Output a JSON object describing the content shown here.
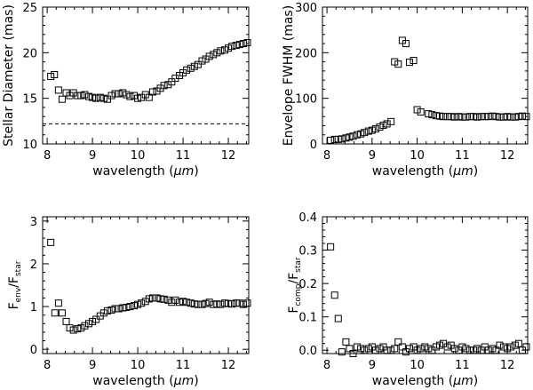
{
  "chart_data": [
    {
      "id": "diameter",
      "type": "scatter",
      "xlabel": "wavelength (",
      "xlabel_unit": "μm",
      "xlabel_end": ")",
      "ylabel": "Stellar Diameter (mas)",
      "xlim": [
        7.9,
        12.45
      ],
      "ylim": [
        10,
        25
      ],
      "xticks": [
        8,
        9,
        10,
        11,
        12
      ],
      "yticks": [
        10,
        15,
        20,
        25
      ],
      "hline": 12.2,
      "x": [
        8.08,
        8.16,
        8.25,
        8.33,
        8.42,
        8.5,
        8.58,
        8.67,
        8.75,
        8.83,
        8.92,
        9.0,
        9.08,
        9.17,
        9.25,
        9.33,
        9.42,
        9.5,
        9.58,
        9.67,
        9.75,
        9.83,
        9.92,
        10.0,
        10.08,
        10.17,
        10.25,
        10.33,
        10.42,
        10.5,
        10.58,
        10.67,
        10.75,
        10.83,
        10.92,
        11.0,
        11.08,
        11.17,
        11.25,
        11.33,
        11.42,
        11.5,
        11.58,
        11.67,
        11.75,
        11.83,
        11.92,
        12.0,
        12.08,
        12.17,
        12.25,
        12.33,
        12.42
      ],
      "y": [
        17.4,
        17.6,
        15.9,
        14.9,
        15.6,
        15.3,
        15.6,
        15.3,
        15.3,
        15.4,
        15.2,
        15.1,
        15.0,
        15.1,
        15.0,
        14.9,
        15.3,
        15.5,
        15.5,
        15.6,
        15.4,
        15.2,
        15.3,
        15.0,
        15.1,
        15.4,
        15.1,
        15.7,
        15.8,
        16.1,
        16.4,
        16.5,
        16.8,
        17.2,
        17.5,
        17.8,
        18.1,
        18.3,
        18.5,
        18.7,
        19.1,
        19.3,
        19.6,
        19.8,
        20.0,
        20.2,
        20.3,
        20.5,
        20.7,
        20.8,
        20.9,
        21.0,
        21.1
      ]
    },
    {
      "id": "fwhm",
      "type": "scatter",
      "xlabel": "wavelength (",
      "xlabel_unit": "μm",
      "xlabel_end": ")",
      "ylabel": "Envelope FWHM (mas)",
      "xlim": [
        7.9,
        12.45
      ],
      "ylim": [
        0,
        300
      ],
      "xticks": [
        8,
        9,
        10,
        11,
        12
      ],
      "yticks": [
        0,
        100,
        200,
        300
      ],
      "x": [
        8.08,
        8.17,
        8.25,
        8.33,
        8.42,
        8.5,
        8.58,
        8.67,
        8.75,
        8.83,
        8.92,
        9.0,
        9.08,
        9.17,
        9.25,
        9.33,
        9.42,
        9.5,
        9.58,
        9.67,
        9.75,
        9.83,
        9.92,
        10.0,
        10.08,
        10.25,
        10.33,
        10.42,
        10.5,
        10.58,
        10.67,
        10.75,
        10.83,
        10.92,
        11.0,
        11.08,
        11.17,
        11.25,
        11.33,
        11.42,
        11.5,
        11.58,
        11.67,
        11.75,
        11.83,
        11.92,
        12.0,
        12.08,
        12.17,
        12.25,
        12.33,
        12.42
      ],
      "y": [
        8,
        10,
        10,
        11,
        13,
        15,
        17,
        20,
        22,
        25,
        28,
        30,
        33,
        37,
        41,
        44,
        49,
        180,
        175,
        227,
        220,
        179,
        183,
        75,
        70,
        66,
        64,
        62,
        61,
        60,
        60,
        60,
        59,
        60,
        59,
        59,
        60,
        60,
        59,
        60,
        60,
        60,
        61,
        60,
        59,
        59,
        60,
        59,
        59,
        60,
        61,
        60
      ],
      "x_fix": true
    },
    {
      "id": "fenv",
      "type": "scatter",
      "xlabel": "wavelength (",
      "xlabel_unit": "μm",
      "xlabel_end": ")",
      "ylabel_main": "F",
      "ylabel_sub1": "env",
      "ylabel_mid": "/F",
      "ylabel_sub2": "star",
      "xlim": [
        7.9,
        12.45
      ],
      "ylim": [
        -0.1,
        3.1
      ],
      "xticks": [
        8,
        9,
        10,
        11,
        12
      ],
      "yticks": [
        0,
        1,
        2,
        3
      ],
      "x": [
        8.08,
        8.17,
        8.25,
        8.33,
        8.42,
        8.5,
        8.58,
        8.67,
        8.75,
        8.83,
        8.92,
        9.0,
        9.08,
        9.17,
        9.25,
        9.33,
        9.42,
        9.5,
        9.58,
        9.67,
        9.75,
        9.83,
        9.92,
        10.0,
        10.08,
        10.17,
        10.25,
        10.33,
        10.42,
        10.5,
        10.58,
        10.67,
        10.75,
        10.83,
        10.92,
        11.0,
        11.08,
        11.17,
        11.25,
        11.33,
        11.42,
        11.5,
        11.58,
        11.67,
        11.75,
        11.83,
        11.92,
        12.0,
        12.08,
        12.17,
        12.25,
        12.33,
        12.42
      ],
      "y": [
        2.5,
        0.85,
        1.08,
        0.85,
        0.65,
        0.5,
        0.45,
        0.48,
        0.5,
        0.55,
        0.6,
        0.65,
        0.7,
        0.78,
        0.85,
        0.9,
        0.92,
        0.95,
        0.95,
        0.97,
        0.98,
        1.0,
        1.02,
        1.05,
        1.08,
        1.12,
        1.18,
        1.2,
        1.2,
        1.18,
        1.17,
        1.15,
        1.1,
        1.15,
        1.1,
        1.12,
        1.1,
        1.08,
        1.06,
        1.05,
        1.05,
        1.07,
        1.1,
        1.05,
        1.06,
        1.05,
        1.08,
        1.07,
        1.06,
        1.08,
        1.08,
        1.05,
        1.08
      ]
    },
    {
      "id": "fcomp",
      "type": "scatter",
      "xlabel": "wavelength (",
      "xlabel_unit": "μm",
      "xlabel_end": ")",
      "ylabel_main": "F",
      "ylabel_sub1": "comp",
      "ylabel_mid": "/F",
      "ylabel_sub2": "star",
      "xlim": [
        7.9,
        12.45
      ],
      "ylim": [
        -0.01,
        0.4
      ],
      "xticks": [
        8,
        9,
        10,
        11,
        12
      ],
      "yticks": [
        0.0,
        0.1,
        0.2,
        0.3,
        0.4
      ],
      "ytick_labels": [
        "0.0",
        "0.1",
        "0.2",
        "0.3",
        "0.4"
      ],
      "x": [
        8.08,
        8.17,
        8.25,
        8.33,
        8.42,
        8.5,
        8.58,
        8.67,
        8.75,
        8.83,
        8.92,
        9.0,
        9.08,
        9.17,
        9.25,
        9.33,
        9.42,
        9.5,
        9.58,
        9.67,
        9.75,
        9.83,
        9.92,
        10.0,
        10.08,
        10.17,
        10.25,
        10.33,
        10.42,
        10.5,
        10.58,
        10.67,
        10.75,
        10.83,
        10.92,
        11.0,
        11.08,
        11.17,
        11.25,
        11.33,
        11.42,
        11.5,
        11.58,
        11.67,
        11.75,
        11.83,
        11.92,
        12.0,
        12.08,
        12.17,
        12.25,
        12.33,
        12.42
      ],
      "y": [
        0.31,
        0.165,
        0.095,
        -0.005,
        0.025,
        0.005,
        -0.01,
        0.01,
        0.005,
        0.0,
        0.005,
        0.01,
        0.0,
        0.005,
        0.01,
        0.0,
        0.0,
        0.005,
        0.025,
        0.01,
        -0.005,
        0.005,
        0.01,
        0.0,
        0.005,
        0.01,
        0.005,
        0.0,
        0.01,
        0.015,
        0.02,
        0.01,
        0.015,
        0.005,
        0.0,
        0.01,
        0.005,
        0.0,
        0.0,
        0.005,
        0.0,
        0.01,
        0.0,
        0.005,
        0.0,
        0.015,
        0.01,
        0.005,
        0.01,
        0.015,
        0.02,
        0.0,
        0.01
      ]
    }
  ]
}
